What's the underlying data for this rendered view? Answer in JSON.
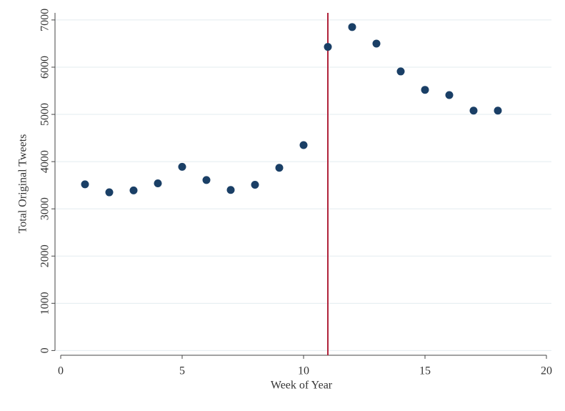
{
  "chart_data": {
    "type": "scatter",
    "x_label": "Week of Year",
    "y_label": "Total Original Tweets",
    "x": [
      1,
      2,
      3,
      4,
      5,
      6,
      7,
      8,
      9,
      10,
      11,
      12,
      13,
      14,
      15,
      16,
      17,
      18
    ],
    "values": [
      3520,
      3350,
      3390,
      3540,
      3890,
      3610,
      3400,
      3510,
      3870,
      4350,
      6430,
      6850,
      6500,
      5910,
      5520,
      5410,
      5080,
      5080
    ],
    "color": "#1a3f66",
    "xlim": [
      0,
      20
    ],
    "xticks": [
      0,
      5,
      10,
      15,
      20
    ],
    "ylim": [
      -100,
      7150
    ],
    "yticks": [
      0,
      1000,
      2000,
      3000,
      4000,
      5000,
      6000,
      7000
    ],
    "grid": true,
    "reference_line": {
      "x": 11,
      "color": "#b0223a"
    }
  }
}
